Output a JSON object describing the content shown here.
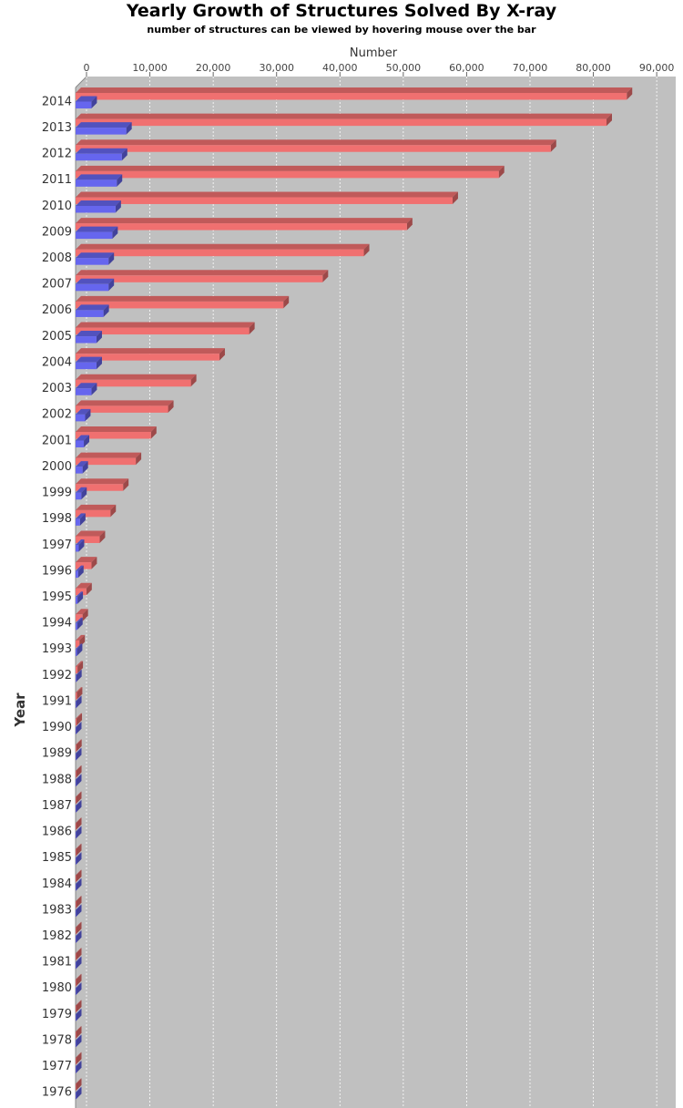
{
  "chart_data": {
    "type": "bar",
    "orientation": "horizontal",
    "style": "3d",
    "title": "Yearly Growth of Structures Solved By X-ray",
    "subtitle": "number of structures can be viewed by hovering mouse over the bar",
    "xlabel": "Number",
    "ylabel": "Year",
    "xlim": [
      0,
      93000
    ],
    "xticks": [
      "0",
      "10,000",
      "20,000",
      "30,000",
      "40,000",
      "50,000",
      "60,000",
      "70,000",
      "80,000",
      "90,000"
    ],
    "xtick_values": [
      0,
      10000,
      20000,
      30000,
      40000,
      50000,
      60000,
      70000,
      80000,
      90000
    ],
    "grid": true,
    "plot_background": "#c0c0c0",
    "categories": [
      "2014",
      "2013",
      "2012",
      "2011",
      "2010",
      "2009",
      "2008",
      "2007",
      "2006",
      "2005",
      "2004",
      "2003",
      "2002",
      "2001",
      "2000",
      "1999",
      "1998",
      "1997",
      "1996",
      "1995",
      "1994",
      "1993",
      "1992",
      "1991",
      "1990",
      "1989",
      "1988",
      "1987",
      "1986",
      "1985",
      "1984",
      "1983",
      "1982",
      "1981",
      "1980",
      "1979",
      "1978",
      "1977",
      "1976"
    ],
    "series": [
      {
        "color": "#f07070",
        "values": [
          87000,
          83800,
          75000,
          66800,
          59500,
          52300,
          45500,
          39000,
          32800,
          27400,
          22700,
          18200,
          14600,
          11900,
          9500,
          7500,
          5500,
          3800,
          2500,
          1700,
          1100,
          600,
          300,
          200,
          150,
          100,
          80,
          60,
          50,
          40,
          30,
          25,
          20,
          15,
          10,
          8,
          5,
          4,
          3
        ]
      },
      {
        "color": "#6666ee",
        "values": [
          2500,
          8000,
          7300,
          6500,
          6300,
          5800,
          5200,
          5200,
          4400,
          3300,
          3300,
          2500,
          1500,
          1300,
          1100,
          900,
          700,
          500,
          400,
          300,
          250,
          200,
          100,
          80,
          60,
          50,
          40,
          30,
          25,
          20,
          15,
          12,
          10,
          8,
          6,
          5,
          4,
          3,
          2
        ]
      }
    ]
  }
}
